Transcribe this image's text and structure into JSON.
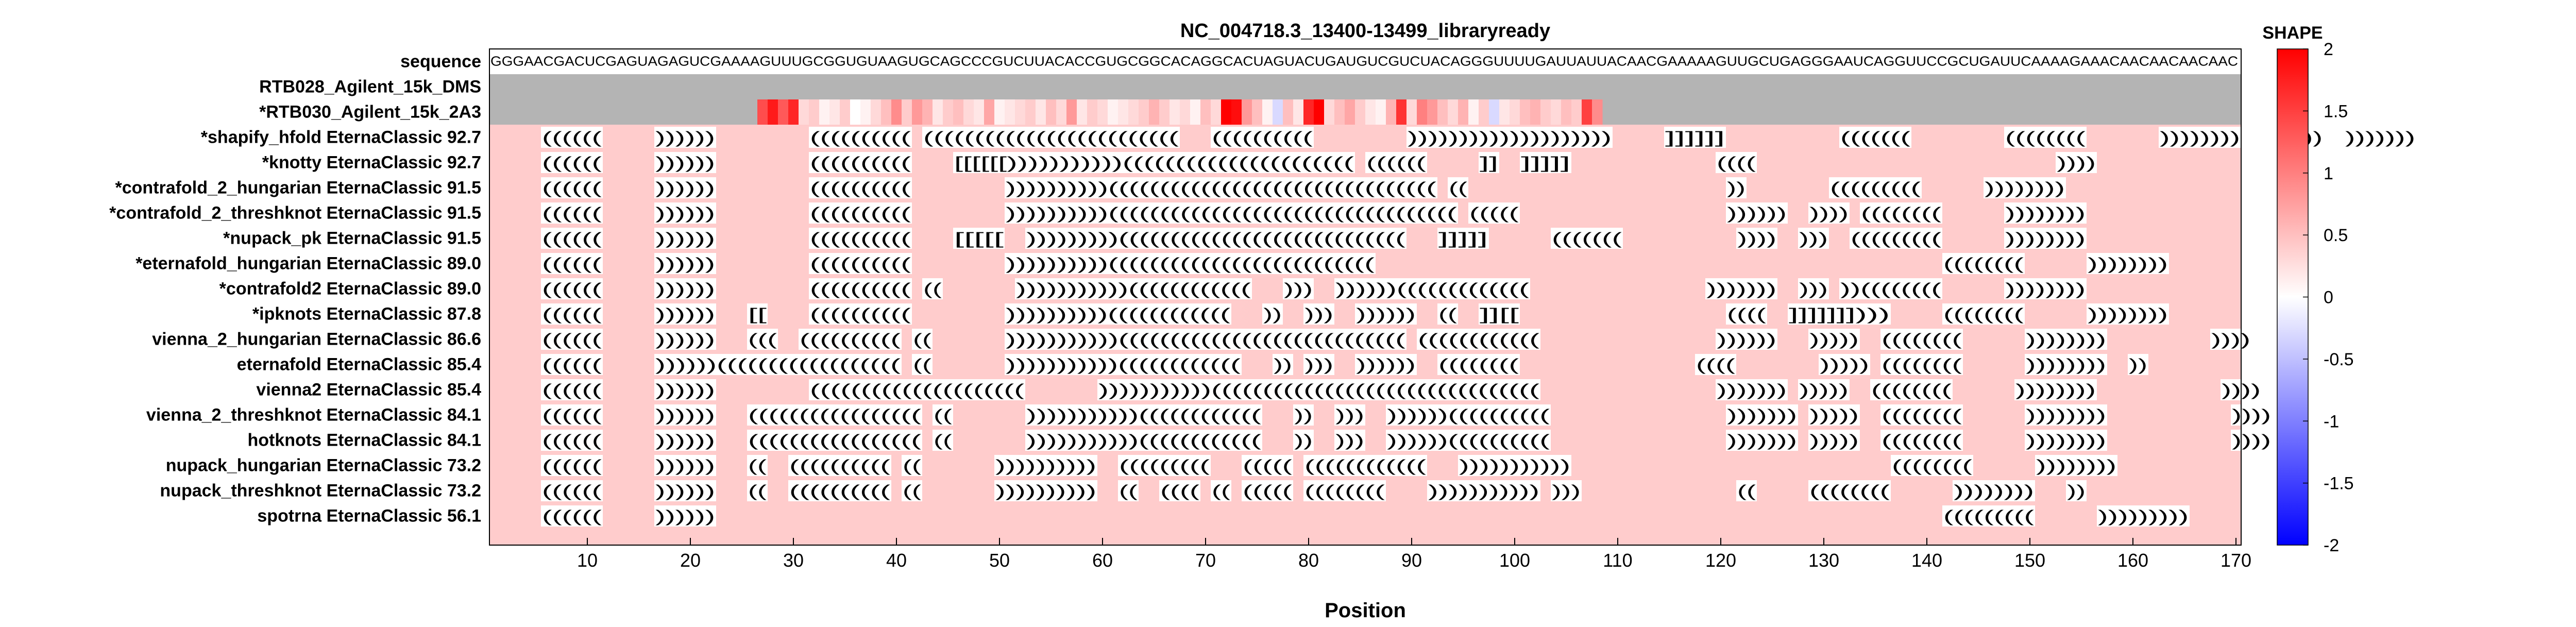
{
  "chart_data": {
    "type": "heatmap",
    "title": "NC_004718.3_13400-13499_libraryready",
    "xlabel": "Position",
    "xlim": [
      0.5,
      170.5
    ],
    "xticks": [
      10,
      20,
      30,
      40,
      50,
      60,
      70,
      80,
      90,
      100,
      110,
      120,
      130,
      140,
      150,
      160,
      170
    ],
    "background_color": "#ffcccc",
    "colorbar": {
      "label": "SHAPE",
      "range": [
        -2,
        2
      ],
      "ticks": [
        "2",
        "1.5",
        "1",
        "0.5",
        "0",
        "-0.5",
        "-1",
        "-1.5",
        "-2"
      ],
      "colors": [
        "#0000ff",
        "#ffffff",
        "#ff0000"
      ]
    },
    "sequence_label": "sequence",
    "sequence": "GGGAACGACUCGAGUAGAGUCGAAAAGUUUGCGGUGUAAGUGCAGCCCGUCUUACACCGUGCGGCACAGGCACUAGUACUGAUGUCGUCUACAGGGUUUUGAUUAUUACAACGAAAAAGUUGCUGAGGGAAUCAGGUUCCGCUGAUUCAAAAGAAACAACAACAACAAC",
    "data_rows": [
      {
        "label": "RTB028_Agilent_15k_DMS",
        "masked_color": "#b4b4b4",
        "start": 1,
        "end": 0,
        "values": []
      },
      {
        "label": "*RTB030_Agilent_15k_2A3",
        "masked_color": "#b4b4b4",
        "start": 27,
        "end": 108,
        "values": [
          1.4,
          1.8,
          1.3,
          1.7,
          0.3,
          0.4,
          0.1,
          0.2,
          0.4,
          0.0,
          0.1,
          0.3,
          0.5,
          0.9,
          0.4,
          0.8,
          0.6,
          0.2,
          0.4,
          0.5,
          0.3,
          0.2,
          0.7,
          0.1,
          0.2,
          0.3,
          0.4,
          0.2,
          0.5,
          0.3,
          0.8,
          0.2,
          0.4,
          0.3,
          0.1,
          0.2,
          0.3,
          0.4,
          0.6,
          0.4,
          0.2,
          0.3,
          0.1,
          0.5,
          0.3,
          2.0,
          1.9,
          0.8,
          0.5,
          0.1,
          -0.3,
          0.5,
          0.2,
          1.7,
          2.0,
          0.3,
          0.5,
          0.7,
          0.4,
          0.2,
          0.1,
          0.6,
          1.6,
          0.3,
          1.0,
          0.8,
          0.5,
          0.3,
          0.6,
          0.1,
          0.4,
          -0.3,
          0.2,
          0.3,
          0.5,
          0.6,
          0.4,
          0.3,
          0.5,
          0.4,
          1.5,
          0.9
        ]
      }
    ],
    "structures": [
      {
        "label": "*shapify_hfold EternaClassic",
        "score": "92.7",
        "dotbracket": ".....((((((.....)))))).........((((((((((.(((((((((((((((((((((((((...((((((((((.........)))))))))))))))))))).....]]]]]]...........(((((((.........((((((((.......)))))))).....)))..)))))))........."
      },
      {
        "label": "*knotty EternaClassic",
        "score": "92.7",
        "dotbracket": ".....((((((.....)))))).........((((((((((....[[[[[[)))))))))))((((((((((((((((((((((.((((((.....]]..]]]]]..............((((.............................)))).................................."
      },
      {
        "label": "*contrafold_2_hungarian EternaClassic",
        "score": "91.5",
        "dotbracket": ".....((((((.....)))))).........((((((((((.........))))))))))((((((((((((((((((((((((((((((((.((.........................))........(((((((((......))))))))..................."
      },
      {
        "label": "*contrafold_2_threshknot EternaClassic",
        "score": "91.5",
        "dotbracket": ".....((((((.....)))))).........((((((((((.........))))))))))((((((((((((((((((((((((((((((((((.(((((....................))))))..)))).((((((((......))))))))..................."
      },
      {
        "label": "*nupack_pk EternaClassic",
        "score": "91.5",
        "dotbracket": ".....((((((.....)))))).........((((((((((....[[[[[..)))))))))((((((((((((((((((((((((((((...]]]]]......(((((((...........))))..)))..(((((((((......))))))))..................."
      },
      {
        "label": "*eternafold_hungarian EternaClassic",
        "score": "89.0",
        "dotbracket": ".....((((((.....)))))).........((((((((((.........))))))))))((((((((((((((((((((((((((.......................................................((((((((......))))))))..................."
      },
      {
        "label": "*contrafold2 EternaClassic",
        "score": "89.0",
        "dotbracket": ".....((((((.....)))))).........((((((((((.((.......)))))))))))((((((((((((...)))..))))))(((((((((((((.................)))))))..))).))((((((((......))))))))..................."
      },
      {
        "label": "*ipknots EternaClassic",
        "score": "87.8",
        "dotbracket": ".....((((((.....))))))...[[....((((((((((.........))))))))))((((((((((((...))..)))..))))))..((..]][[....................((((..]]]]]]]))).....((((((((......))))))))..................."
      },
      {
        "label": "vienna_2_hungarian EternaClassic",
        "score": "86.6",
        "dotbracket": ".....((((((.....))))))...(((..((((((((((.((.......)))))))))))((((((((((((((((((((((((((((.((((((((((((.................))))))...)))))..((((((((......))))))))..........))))........"
      },
      {
        "label": "eternafold EternaClassic",
        "score": "85.4",
        "dotbracket": ".....((((((.....))))))((((((((((((((((((.((.......)))))))))))((((((((((((...)).)))..))))))..((((((((.................((((........))))).((((((((......))))))))..))................"
      },
      {
        "label": "vienna2 EternaClassic",
        "score": "85.4",
        "dotbracket": ".....((((((.....)))))).........(((((((((((((((((((((.......)))))))))))((((((((((((((((((((((((((((((((.................))))))).)))))..((((((((......))))))))............))))......"
      },
      {
        "label": "vienna_2_threshknot EternaClassic",
        "score": "84.1",
        "dotbracket": ".....((((((.....))))))...(((((((((((((((((.((.......)))))))))))((((((((((((...))..)))..))))))((((((((((.................))))))).)))))..((((((((......))))))))............))))......"
      },
      {
        "label": "hotknots EternaClassic",
        "score": "84.1",
        "dotbracket": ".....((((((.....))))))...(((((((((((((((((.((.......)))))))))))((((((((((((...))..)))..))))))((((((((((.................))))))).)))))..((((((((......))))))))............))))......"
      },
      {
        "label": "nupack_hungarian EternaClassic",
        "score": "73.2",
        "dotbracket": ".....((((((.....))))))...((..((((((((((.((.......))))))))))..(((((((((...(((((.((((((((((((...)))))))))))...............................((((((((......))))))))..................."
      },
      {
        "label": "nupack_threshknot EternaClassic",
        "score": "73.2",
        "dotbracket": ".....((((((.....))))))...((..((((((((((.((.......))))))))))..((..((((.((.(((((.((((((((....))))))))))).)))...............((.....((((((((......))))))))...))..............."
      },
      {
        "label": "spotrna EternaClassic",
        "score": "56.1",
        "dotbracket": ".....((((((.....)))))).......................................................................................................................(((((((((......)))))))))...................."
      }
    ]
  }
}
